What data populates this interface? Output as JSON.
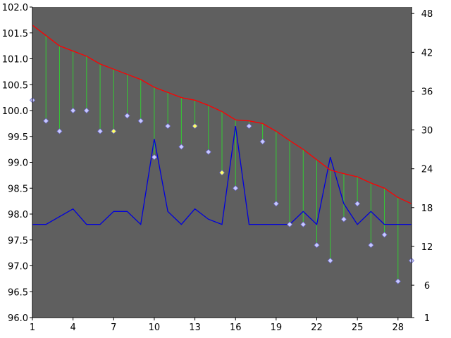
{
  "chart_data": {
    "type": "line",
    "title": "",
    "x": [
      1,
      2,
      3,
      4,
      5,
      6,
      7,
      8,
      9,
      10,
      11,
      12,
      13,
      14,
      15,
      16,
      17,
      18,
      19,
      20,
      21,
      22,
      23,
      24,
      25,
      26,
      27,
      28,
      29
    ],
    "x_ticks": [
      1,
      4,
      7,
      10,
      13,
      16,
      19,
      22,
      25,
      28
    ],
    "xlim": [
      1,
      29
    ],
    "y_left": {
      "range": [
        96.0,
        102.0
      ],
      "ticks": [
        "96.0",
        "96.5",
        "97.0",
        "97.5",
        "98.0",
        "98.5",
        "99.0",
        "99.5",
        "100.0",
        "100.5",
        "101.0",
        "101.5",
        "102.0"
      ]
    },
    "y_right": {
      "range": [
        1,
        49
      ],
      "ticks": [
        "1",
        "6",
        "12",
        "18",
        "24",
        "30",
        "36",
        "42",
        "48"
      ]
    },
    "series": [
      {
        "axis": "left",
        "style": "line",
        "color": "#ff0000",
        "values": [
          101.65,
          101.45,
          101.25,
          101.15,
          101.05,
          100.9,
          100.8,
          100.7,
          100.6,
          100.45,
          100.35,
          100.25,
          100.2,
          100.1,
          99.98,
          99.82,
          99.8,
          99.75,
          99.6,
          99.42,
          99.25,
          99.05,
          98.85,
          98.78,
          98.72,
          98.6,
          98.5,
          98.32,
          98.2
        ]
      },
      {
        "axis": "left",
        "style": "markers",
        "marker": "diamond",
        "color": "#c8c8ff",
        "highlight_color": "#ffff66",
        "highlighted_x": [
          7,
          13,
          15
        ],
        "values": [
          100.2,
          99.8,
          99.6,
          100.0,
          100.0,
          99.6,
          99.6,
          99.9,
          99.8,
          99.1,
          99.7,
          99.3,
          99.7,
          99.2,
          98.8,
          98.5,
          99.7,
          99.4,
          98.2,
          97.8,
          97.8,
          97.4,
          97.1,
          97.9,
          98.2,
          97.4,
          97.6,
          96.7,
          97.1
        ]
      },
      {
        "axis": "left",
        "style": "stems",
        "color": "#33cc33",
        "from": "red line",
        "to": "markers"
      },
      {
        "axis": "left",
        "style": "line",
        "color": "#0000dd",
        "values": [
          97.8,
          97.8,
          97.95,
          98.1,
          97.8,
          97.8,
          98.05,
          98.05,
          97.8,
          99.45,
          98.05,
          97.8,
          98.1,
          97.9,
          97.8,
          99.7,
          97.8,
          97.8,
          97.8,
          97.8,
          98.05,
          97.8,
          99.1,
          98.2,
          97.8,
          98.05,
          97.8,
          97.8,
          97.8
        ]
      }
    ],
    "colors": {
      "plot_background": "#5f5f5f",
      "page_background": "#ffffff"
    },
    "grid": false,
    "legend": "none"
  }
}
